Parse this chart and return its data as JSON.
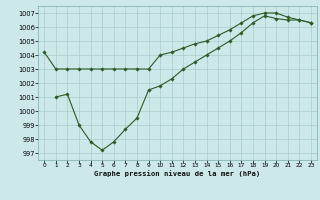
{
  "title": "Graphe pression niveau de la mer (hPa)",
  "background_color": "#cce8e8",
  "grid_color": "#aacccc",
  "line_color": "#2d5a27",
  "x_ticks": [
    0,
    1,
    2,
    3,
    4,
    5,
    6,
    7,
    8,
    9,
    10,
    11,
    12,
    13,
    14,
    15,
    16,
    17,
    18,
    19,
    20,
    21,
    22,
    23
  ],
  "ylim": [
    996.5,
    1007.5
  ],
  "yticks": [
    997,
    998,
    999,
    1000,
    1001,
    1002,
    1003,
    1004,
    1005,
    1006,
    1007
  ],
  "line1_x": [
    0,
    1,
    2,
    3,
    4,
    5,
    6,
    7,
    8,
    9,
    10,
    11,
    12,
    13,
    14,
    15,
    16,
    17,
    18,
    19,
    20,
    21,
    22,
    23
  ],
  "line1_y": [
    1004.2,
    1003.0,
    1003.0,
    1003.0,
    1003.0,
    1003.0,
    1003.0,
    1003.0,
    1003.0,
    1003.0,
    1004.0,
    1004.2,
    1004.5,
    1004.8,
    1005.0,
    1005.4,
    1005.8,
    1006.3,
    1006.8,
    1007.0,
    1007.0,
    1006.7,
    1006.5,
    1006.3
  ],
  "line2_x": [
    1,
    2,
    3,
    4,
    5,
    6,
    7,
    8,
    9,
    10,
    11,
    12,
    13,
    14,
    15,
    16,
    17,
    18,
    19,
    20,
    21,
    22,
    23
  ],
  "line2_y": [
    1001.0,
    1001.2,
    999.0,
    997.8,
    997.2,
    997.8,
    998.7,
    999.5,
    1001.5,
    1001.8,
    1002.3,
    1003.0,
    1003.5,
    1004.0,
    1004.5,
    1005.0,
    1005.6,
    1006.3,
    1006.8,
    1006.6,
    1006.5,
    1006.5,
    1006.3
  ]
}
